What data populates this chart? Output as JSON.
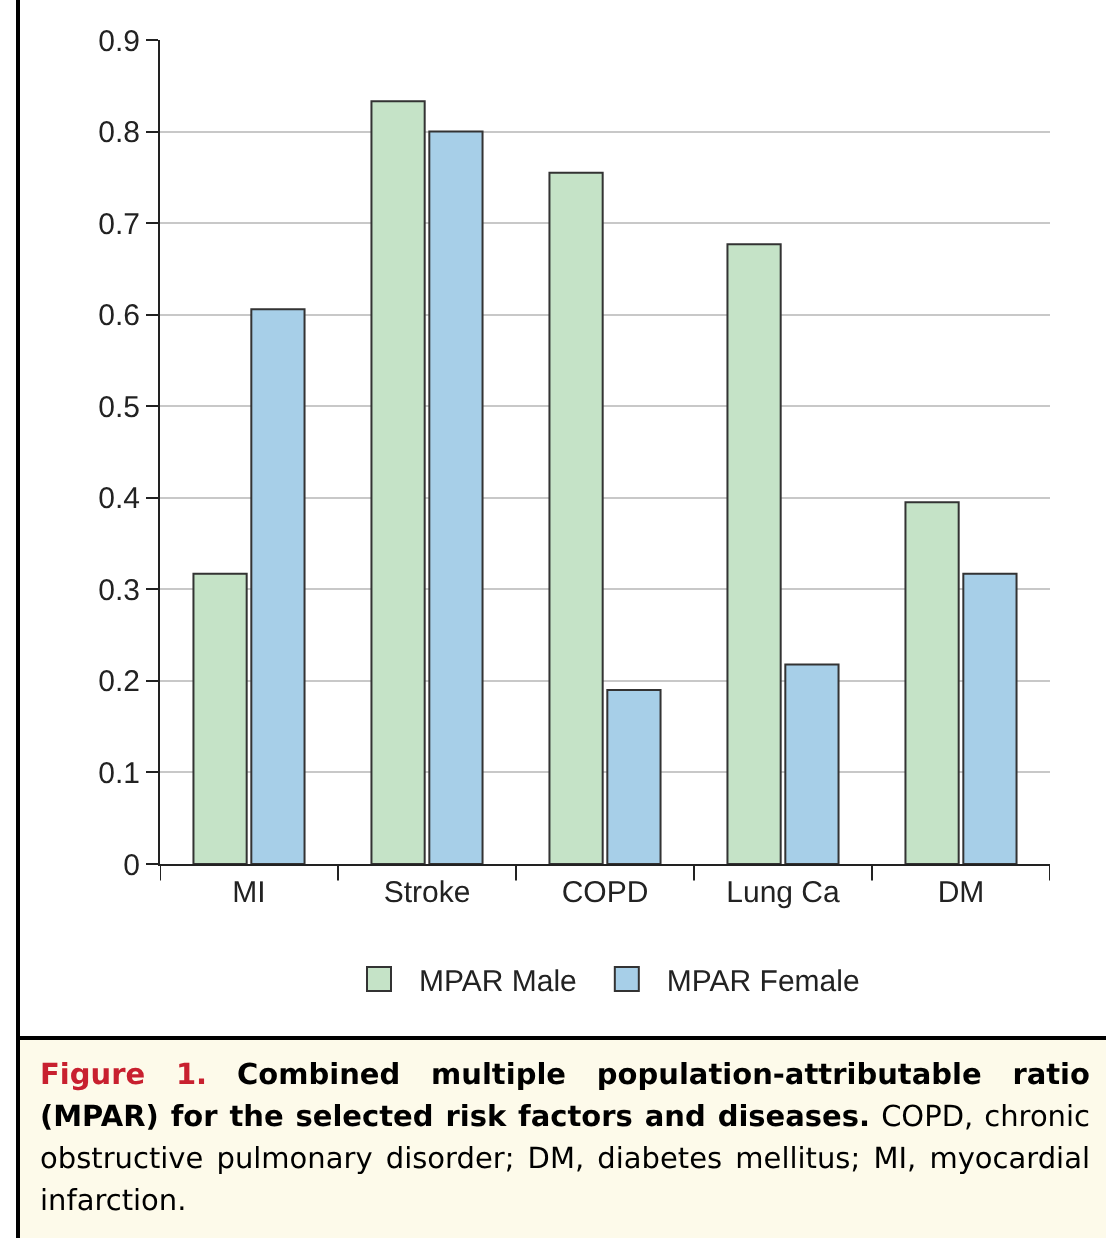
{
  "chart_data": {
    "type": "bar",
    "categories": [
      "MI",
      "Stroke",
      "COPD",
      "Lung Ca",
      "DM"
    ],
    "series": [
      {
        "name": "MPAR Male",
        "color": "#c5e3c7",
        "values": [
          0.317,
          0.833,
          0.755,
          0.677,
          0.395
        ]
      },
      {
        "name": "MPAR Female",
        "color": "#a7cfe8",
        "values": [
          0.606,
          0.8,
          0.19,
          0.218,
          0.317
        ]
      }
    ],
    "ylim": [
      0,
      0.9
    ],
    "yticks": [
      0,
      0.1,
      0.2,
      0.3,
      0.4,
      0.5,
      0.6,
      0.7,
      0.8,
      0.9
    ],
    "grid": "y",
    "legend": "bottom",
    "annotations": [
      "Figure 1.",
      "Combined multiple population-attributable ratio (MPAR) for the selected risk factors and diseases.",
      "COPD, chronic obstructive pulmonary disorder; DM, diabetes mellitus; MI, myocardial infarction."
    ]
  }
}
